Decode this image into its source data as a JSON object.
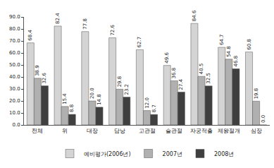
{
  "chart_data": {
    "type": "bar",
    "categories": [
      "전체",
      "위",
      "대장",
      "담낭",
      "고관절",
      "슬관절",
      "자궁적출",
      "제왕절개",
      "심장"
    ],
    "series": [
      {
        "name": "예비평가(2006년)",
        "color": "#d4d4d4",
        "values": [
          68.4,
          82.4,
          77.8,
          72.6,
          62.7,
          49.6,
          84.6,
          64.7,
          60.8
        ],
        "value_labels": [
          "68.4",
          "82.4",
          "77.8",
          "72.6",
          "62.7",
          "49.6",
          "84.6",
          "64.7",
          "60.8"
        ]
      },
      {
        "name": "2007년",
        "color": "#b0b0b0",
        "values": [
          38.9,
          15.4,
          20,
          29.8,
          12,
          36.8,
          40.5,
          54.8,
          19.8
        ],
        "value_labels": [
          "38.9",
          "15.4",
          "20.0",
          "29.8",
          "12.0",
          "36.8",
          "40.5",
          "54.8",
          "19.8"
        ]
      },
      {
        "name": "2008년",
        "color": "#3f3f3f",
        "values": [
          32.6,
          8.8,
          14.8,
          23.2,
          8.7,
          27.4,
          32.5,
          46.8,
          0
        ],
        "value_labels": [
          "32.6",
          "8.8",
          "14.8",
          "23.2",
          "8.7",
          "27.4",
          "32.5",
          "46.8",
          "0.0"
        ]
      }
    ],
    "ylim": [
      0,
      90
    ],
    "yticks": [
      {
        "value": 0,
        "label": "0.0"
      },
      {
        "value": 10,
        "label": "10.0"
      },
      {
        "value": 20,
        "label": "20.0"
      },
      {
        "value": 30,
        "label": "30.0"
      },
      {
        "value": 40,
        "label": "40.0"
      },
      {
        "value": 50,
        "label": "50.0"
      },
      {
        "value": 60,
        "label": "60.0"
      },
      {
        "value": 70,
        "label": "70.0"
      },
      {
        "value": 80,
        "label": "80.0"
      },
      {
        "value": 90,
        "label": "90.0"
      }
    ],
    "grid": false,
    "legend": "bottom",
    "data_labels": true
  }
}
